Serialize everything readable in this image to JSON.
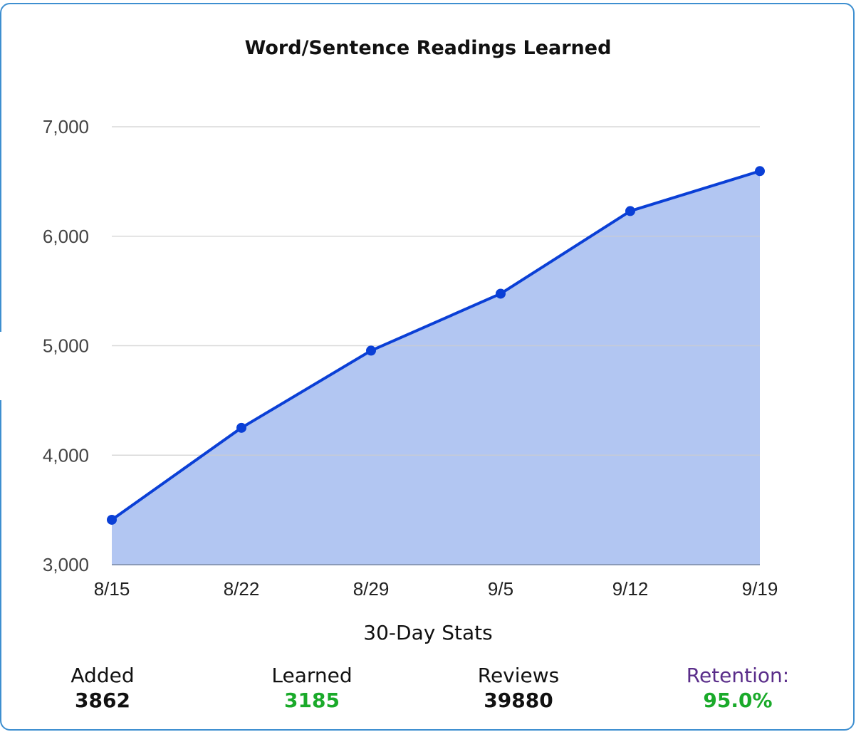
{
  "chart_data": {
    "type": "area",
    "title": "Word/Sentence Readings Learned",
    "categories": [
      "8/15",
      "8/22",
      "8/29",
      "9/5",
      "9/12",
      "9/19"
    ],
    "series": [
      {
        "values": [
          3410,
          4250,
          4955,
          5475,
          6230,
          6595
        ]
      }
    ],
    "ylim": [
      3000,
      7000
    ],
    "yticks": [
      "3,000",
      "4,000",
      "5,000",
      "6,000",
      "7,000"
    ],
    "ytick_values": [
      3000,
      4000,
      5000,
      6000,
      7000
    ],
    "grid": true,
    "colors": {
      "line": "#0a3fd6",
      "fill": "#b2c6f2",
      "grid": "#cccccc"
    }
  },
  "stats": {
    "title": "30-Day Stats",
    "added": {
      "label": "Added",
      "value": "3862",
      "label_color": "#111111",
      "value_color": "#111111"
    },
    "learned": {
      "label": "Learned",
      "value": "3185",
      "label_color": "#111111",
      "value_color": "#1aaa2a"
    },
    "reviews": {
      "label": "Reviews",
      "value": "39880",
      "label_color": "#111111",
      "value_color": "#111111"
    },
    "retention": {
      "label": "Retention:",
      "value": "95.0%",
      "label_color": "#5a2d8a",
      "value_color": "#1aaa2a"
    }
  },
  "colors": {
    "card_border": "#3e8fd0"
  }
}
